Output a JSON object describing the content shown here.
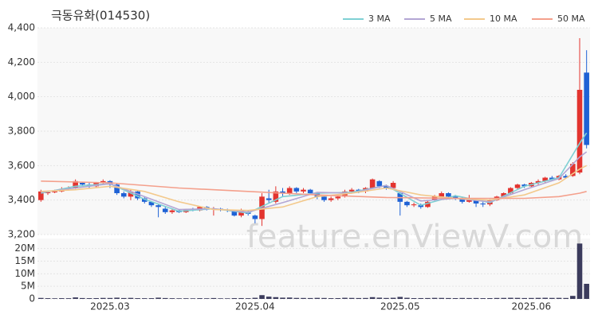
{
  "chart_data": {
    "type": "candlestick",
    "title": "극동유화(014530)",
    "watermark": "feature.enViewV.com",
    "categories": [
      null,
      null,
      null,
      null,
      null,
      null,
      null,
      null,
      null,
      null,
      "2025.03",
      null,
      null,
      null,
      null,
      null,
      null,
      null,
      null,
      null,
      null,
      null,
      null,
      null,
      null,
      null,
      null,
      null,
      null,
      null,
      null,
      "2025.04",
      null,
      null,
      null,
      null,
      null,
      null,
      null,
      null,
      null,
      null,
      null,
      null,
      null,
      null,
      null,
      null,
      null,
      null,
      null,
      null,
      "2025.05",
      null,
      null,
      null,
      null,
      null,
      null,
      null,
      null,
      null,
      null,
      null,
      null,
      null,
      null,
      null,
      null,
      null,
      null,
      "2025.06",
      null,
      null,
      null,
      null,
      null,
      null,
      null,
      null
    ],
    "open": [
      3400,
      3440,
      3445,
      3450,
      3465,
      3470,
      3500,
      3490,
      3480,
      3500,
      3510,
      3490,
      3440,
      3420,
      3450,
      3410,
      3390,
      3370,
      3350,
      3330,
      3340,
      3330,
      3345,
      3340,
      3360,
      3345,
      3350,
      3345,
      3340,
      3310,
      3330,
      3310,
      3290,
      3410,
      3390,
      3450,
      3440,
      3470,
      3450,
      3460,
      3440,
      3420,
      3400,
      3410,
      3420,
      3450,
      3460,
      3450,
      3470,
      3510,
      3480,
      3470,
      3440,
      3390,
      3370,
      3370,
      3360,
      3400,
      3420,
      3440,
      3420,
      3410,
      3390,
      3400,
      3380,
      3375,
      3400,
      3420,
      3440,
      3470,
      3490,
      3480,
      3500,
      3510,
      3530,
      3520,
      3540,
      3540,
      3560,
      4140
    ],
    "high": [
      3460,
      3455,
      3460,
      3475,
      3480,
      3520,
      3505,
      3500,
      3505,
      3520,
      3515,
      3495,
      3450,
      3460,
      3455,
      3420,
      3395,
      3380,
      3360,
      3350,
      3345,
      3350,
      3355,
      3365,
      3365,
      3360,
      3355,
      3350,
      3345,
      3350,
      3340,
      3315,
      3440,
      3460,
      3480,
      3470,
      3480,
      3475,
      3470,
      3465,
      3445,
      3425,
      3420,
      3430,
      3460,
      3470,
      3465,
      3475,
      3525,
      3515,
      3490,
      3510,
      3445,
      3395,
      3385,
      3380,
      3395,
      3430,
      3450,
      3445,
      3430,
      3420,
      3430,
      3405,
      3390,
      3405,
      3425,
      3445,
      3475,
      3495,
      3495,
      3505,
      3520,
      3535,
      3540,
      3545,
      3550,
      3620,
      4340,
      4270
    ],
    "low": [
      3390,
      3430,
      3440,
      3445,
      3455,
      3465,
      3480,
      3470,
      3470,
      3490,
      3470,
      3430,
      3410,
      3400,
      3400,
      3380,
      3360,
      3300,
      3320,
      3320,
      3325,
      3325,
      3335,
      3335,
      3340,
      3310,
      3335,
      3330,
      3305,
      3300,
      3310,
      3265,
      3250,
      3380,
      3380,
      3420,
      3430,
      3440,
      3440,
      3430,
      3405,
      3390,
      3390,
      3400,
      3415,
      3440,
      3440,
      3440,
      3465,
      3470,
      3460,
      3465,
      3310,
      3360,
      3360,
      3350,
      3355,
      3395,
      3410,
      3405,
      3400,
      3380,
      3385,
      3360,
      3360,
      3365,
      3395,
      3410,
      3430,
      3460,
      3470,
      3475,
      3490,
      3500,
      3510,
      3515,
      3525,
      3535,
      3550,
      3700
    ],
    "close": [
      3450,
      3445,
      3450,
      3465,
      3470,
      3510,
      3490,
      3480,
      3500,
      3510,
      3490,
      3440,
      3420,
      3450,
      3410,
      3390,
      3370,
      3360,
      3330,
      3340,
      3330,
      3345,
      3340,
      3360,
      3345,
      3350,
      3345,
      3340,
      3310,
      3340,
      3320,
      3290,
      3420,
      3400,
      3450,
      3440,
      3470,
      3450,
      3460,
      3440,
      3420,
      3400,
      3410,
      3420,
      3450,
      3460,
      3450,
      3470,
      3520,
      3480,
      3470,
      3500,
      3390,
      3370,
      3375,
      3360,
      3390,
      3420,
      3440,
      3420,
      3410,
      3390,
      3400,
      3380,
      3375,
      3400,
      3420,
      3440,
      3470,
      3490,
      3480,
      3500,
      3510,
      3530,
      3520,
      3540,
      3530,
      3610,
      4040,
      3720
    ],
    "volume": [
      400000,
      300000,
      250000,
      300000,
      280000,
      600000,
      350000,
      300000,
      320000,
      400000,
      380000,
      500000,
      350000,
      420000,
      300000,
      280000,
      300000,
      500000,
      350000,
      280000,
      250000,
      260000,
      240000,
      300000,
      260000,
      350000,
      240000,
      230000,
      320000,
      330000,
      280000,
      450000,
      1500000,
      900000,
      700000,
      500000,
      550000,
      400000,
      380000,
      350000,
      420000,
      380000,
      300000,
      320000,
      450000,
      400000,
      350000,
      380000,
      700000,
      500000,
      380000,
      450000,
      800000,
      450000,
      320000,
      330000,
      350000,
      420000,
      400000,
      350000,
      320000,
      380000,
      350000,
      360000,
      300000,
      320000,
      380000,
      400000,
      450000,
      420000,
      350000,
      380000,
      420000,
      450000,
      400000,
      420000,
      380000,
      1200000,
      22000000,
      6000000
    ],
    "up_color": "#e3342f",
    "down_color": "#1f62d5",
    "volume_color": "#3b3b5c",
    "series": [
      {
        "name": "3 MA",
        "color": "#7fd0d4",
        "x": [
          0,
          5,
          10,
          15,
          20,
          25,
          30,
          35,
          40,
          45,
          50,
          55,
          60,
          65,
          70,
          75,
          78,
          79
        ],
        "values": [
          3440,
          3480,
          3495,
          3405,
          3335,
          3350,
          3325,
          3420,
          3440,
          3445,
          3485,
          3370,
          3425,
          3385,
          3480,
          3530,
          3730,
          3790
        ]
      },
      {
        "name": "5 MA",
        "color": "#b3a6d4",
        "x": [
          0,
          5,
          10,
          15,
          20,
          25,
          30,
          35,
          40,
          45,
          50,
          55,
          60,
          65,
          70,
          75,
          78,
          79
        ],
        "values": [
          3445,
          3470,
          3495,
          3420,
          3345,
          3350,
          3330,
          3385,
          3445,
          3440,
          3485,
          3395,
          3410,
          3390,
          3460,
          3525,
          3650,
          3680
        ]
      },
      {
        "name": "10 MA",
        "color": "#f3c98c",
        "x": [
          0,
          5,
          10,
          15,
          20,
          25,
          30,
          35,
          40,
          45,
          50,
          55,
          60,
          65,
          70,
          75,
          78,
          79
        ],
        "values": [
          3450,
          3460,
          3480,
          3450,
          3390,
          3345,
          3340,
          3360,
          3420,
          3440,
          3470,
          3430,
          3410,
          3400,
          3430,
          3500,
          3580,
          3600
        ]
      },
      {
        "name": "50 MA",
        "color": "#f4a08c",
        "x": [
          0,
          10,
          20,
          30,
          40,
          50,
          60,
          70,
          75,
          78,
          79
        ],
        "values": [
          3510,
          3500,
          3470,
          3450,
          3430,
          3415,
          3410,
          3410,
          3420,
          3440,
          3450
        ]
      }
    ],
    "ylim": [
      3200,
      4400
    ],
    "yticks": [
      {
        "value": 3200,
        "label": "3,200"
      },
      {
        "value": 3400,
        "label": "3,400"
      },
      {
        "value": 3600,
        "label": "3,600"
      },
      {
        "value": 3800,
        "label": "3,800"
      },
      {
        "value": 4000,
        "label": "4,000"
      },
      {
        "value": 4200,
        "label": "4,200"
      },
      {
        "value": 4400,
        "label": "4,400"
      }
    ],
    "volume_ylim": [
      0,
      24000000
    ],
    "volume_yticks": [
      0,
      {
        "value": 5000000,
        "label": "5M"
      },
      {
        "value": 10000000,
        "label": "10M"
      },
      {
        "value": 15000000,
        "label": "15M"
      },
      {
        "value": 20000000,
        "label": "20M"
      }
    ],
    "grid": true
  }
}
